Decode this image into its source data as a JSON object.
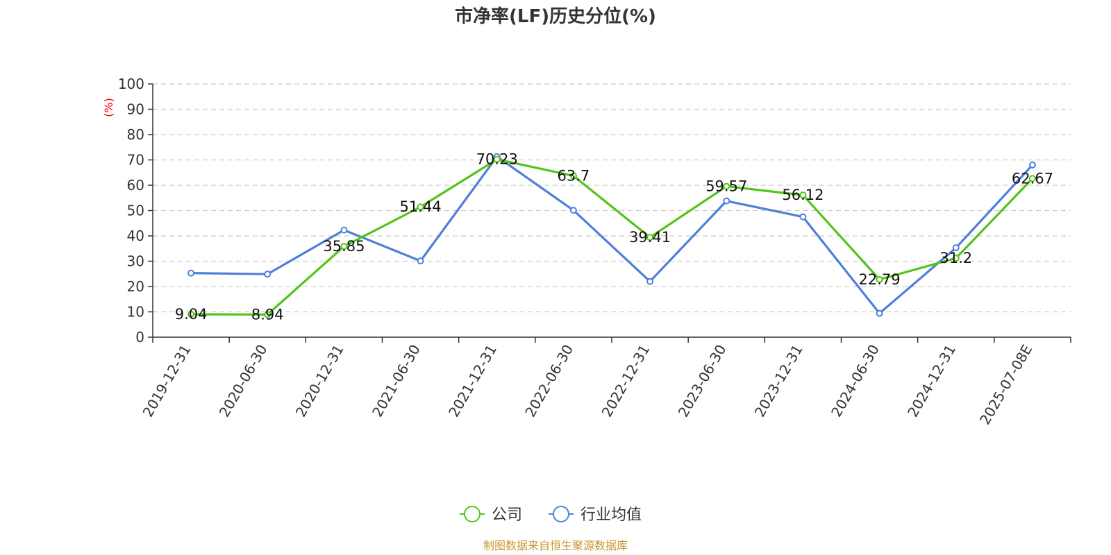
{
  "chart_data": {
    "type": "line",
    "title": "市净率(LF)历史分位(%)",
    "ylabel": "(%)",
    "xlabel": "",
    "ylim": [
      0,
      100
    ],
    "yticks": [
      0,
      10,
      20,
      30,
      40,
      50,
      60,
      70,
      80,
      90,
      100
    ],
    "grid": true,
    "legend_position": "bottom",
    "categories": [
      "2019-12-31",
      "2020-06-30",
      "2020-12-31",
      "2021-06-30",
      "2021-12-31",
      "2022-06-30",
      "2022-12-31",
      "2023-06-30",
      "2023-12-31",
      "2024-06-30",
      "2024-12-31",
      "2025-07-08E"
    ],
    "series": [
      {
        "name": "公司",
        "color": "#52c41a",
        "values": [
          9.04,
          8.94,
          35.85,
          51.44,
          70.23,
          63.7,
          39.41,
          59.57,
          56.12,
          22.79,
          31.2,
          62.67
        ],
        "labels": [
          "9.04",
          "8.94",
          "35.85",
          "51.44",
          "70.23",
          "63.7",
          "39.41",
          "59.57",
          "56.12",
          "22.79",
          "31.2",
          "62.67"
        ]
      },
      {
        "name": "行业均值",
        "color": "#4e7fd9",
        "values": [
          25.3,
          24.9,
          42.3,
          30.1,
          71.3,
          50.1,
          22.0,
          53.8,
          47.5,
          9.4,
          35.3,
          68.0
        ]
      }
    ],
    "source": "制图数据来自恒生聚源数据库"
  }
}
